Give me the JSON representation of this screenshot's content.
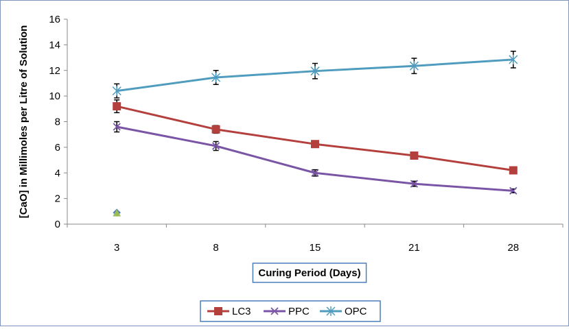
{
  "chart_data": {
    "type": "line",
    "title": "",
    "xlabel": "Curing Period (Days)",
    "ylabel": "[CaO] in Millimoles per Litre of Solution",
    "categories": [
      "3",
      "8",
      "15",
      "21",
      "28"
    ],
    "ylim": [
      0,
      16
    ],
    "yticks": [
      "0",
      "2",
      "4",
      "6",
      "8",
      "10",
      "12",
      "14",
      "16"
    ],
    "grid": false,
    "legend_position": "bottom",
    "series": [
      {
        "name": "LC3",
        "color": "#b3403d",
        "marker": "square",
        "values": [
          9.2,
          7.4,
          6.25,
          5.35,
          4.2
        ],
        "errors": [
          0.5,
          0.3,
          0.25,
          0.2,
          0.2
        ]
      },
      {
        "name": "PPC",
        "color": "#7a55a6",
        "marker": "x",
        "values": [
          7.6,
          6.1,
          4.0,
          3.15,
          2.6
        ],
        "errors": [
          0.4,
          0.35,
          0.25,
          0.2,
          0.15
        ]
      },
      {
        "name": "OPC",
        "color": "#4f9cbf",
        "marker": "star",
        "values": [
          10.4,
          11.45,
          11.95,
          12.35,
          12.85
        ],
        "errors": [
          0.55,
          0.55,
          0.6,
          0.6,
          0.65
        ]
      }
    ],
    "extra_points": [
      {
        "x": "3",
        "y": 0.9,
        "marker": "diamond",
        "color": "#4a7dbb"
      },
      {
        "x": "3",
        "y": 0.85,
        "marker": "triangle",
        "color": "#9bbb59"
      }
    ]
  }
}
